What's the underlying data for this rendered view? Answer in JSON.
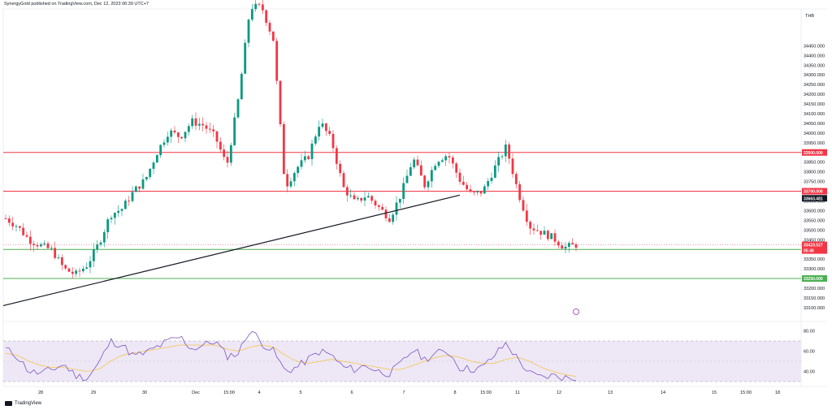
{
  "header": {
    "publisher_line": "SynergyGold published on TradingView.com, Dec 12, 2023 06:39 UTC+7"
  },
  "currency": "THB",
  "footer": {
    "brand": "TradingView"
  },
  "colors": {
    "up": "#089981",
    "down": "#f23645",
    "resistance": "#f23645",
    "support": "#4caf50",
    "trendline": "#131722",
    "rsi": "#7e57c2",
    "rsi_ma": "#f7c64a",
    "rsi_band": "#ede7f6"
  },
  "chart_data": [
    {
      "type": "candlestick",
      "title": "",
      "xlabel": "",
      "ylabel": "THB",
      "ylim": [
        33045,
        34640
      ],
      "y_ticks": [
        33100,
        33150,
        33200,
        33250,
        33300,
        33350,
        33400,
        33450,
        33500,
        33550,
        33600,
        33650,
        33700,
        33750,
        33800,
        33850,
        33900,
        33950,
        34000,
        34050,
        34100,
        34150,
        34200,
        34250,
        34300,
        34350,
        34400,
        34450
      ],
      "y_tick_labels": [
        "33100.000",
        "33150.000",
        "33200.000",
        "33250.000",
        "33300.000",
        "33350.000",
        "33400.000",
        "33450.000",
        "33500.000",
        "33550.000",
        "33600.000",
        "33650.000",
        "33700.000",
        "33750.000",
        "33800.000",
        "33850.000",
        "33900.000",
        "33950.000",
        "34000.000",
        "34050.000",
        "34100.000",
        "34150.000",
        "34200.000",
        "34250.000",
        "34300.000",
        "34350.000",
        "34400.000",
        "34450.000"
      ],
      "x_ticks": [
        "28",
        "29",
        "30",
        "Dec",
        "15:00",
        "4",
        "5",
        "6",
        "7",
        "8",
        "15:00",
        "11",
        "12",
        "13",
        "14",
        "15",
        "15:00",
        "18"
      ],
      "horizontal_lines": [
        {
          "value": 33900,
          "label": "33900.000",
          "kind": "resistance"
        },
        {
          "value": 33700,
          "label": "33700.000",
          "kind": "resistance"
        },
        {
          "value": 33400,
          "label": "33400.000",
          "kind": "support"
        },
        {
          "value": 33250,
          "label": "33250.000",
          "kind": "support"
        }
      ],
      "price_labels": [
        {
          "value": 33663.481,
          "label": "33663.481",
          "kind": "dark"
        },
        {
          "value": 33423.527,
          "label": "33423.527",
          "sub": "05:46",
          "kind": "last"
        }
      ],
      "trendline": {
        "from": {
          "x": "27 Nov",
          "y": 33110
        },
        "to": {
          "x": "8 Dec",
          "y": 33680
        }
      },
      "candle_count": 163,
      "price_path": [
        33560,
        33520,
        33450,
        33420,
        33395,
        33300,
        33270,
        33320,
        33430,
        33580,
        33610,
        33700,
        33760,
        33900,
        34010,
        33980,
        34060,
        34040,
        33980,
        33830,
        34180,
        34650,
        34650,
        34480,
        33720,
        33820,
        33880,
        34060,
        33960,
        33720,
        33640,
        33680,
        33620,
        33560,
        33690,
        33870,
        33730,
        33860,
        33890,
        33760,
        33680,
        33700,
        33820,
        33930,
        33700,
        33520,
        33490,
        33460,
        33410,
        33423.527
      ],
      "last_price": 33423.527
    },
    {
      "type": "line",
      "title": "",
      "series": [
        {
          "name": "",
          "role": "rsi",
          "values": [
            62,
            55,
            40,
            38,
            42,
            47,
            36,
            33,
            48,
            70,
            66,
            55,
            58,
            64,
            70,
            74,
            62,
            66,
            70,
            55,
            58,
            82,
            68,
            60,
            40,
            44,
            52,
            60,
            56,
            44,
            42,
            46,
            40,
            38,
            48,
            62,
            52,
            58,
            60,
            44,
            42,
            44,
            56,
            68,
            52,
            38,
            34,
            36,
            34,
            33
          ]
        },
        {
          "name": "",
          "role": "rsi_ma",
          "values": [
            58,
            56,
            50,
            46,
            44,
            44,
            42,
            40,
            42,
            50,
            56,
            58,
            60,
            62,
            64,
            66,
            66,
            66,
            66,
            62,
            60,
            64,
            66,
            64,
            56,
            50,
            48,
            50,
            52,
            50,
            48,
            46,
            44,
            42,
            42,
            46,
            50,
            54,
            56,
            54,
            50,
            48,
            48,
            52,
            54,
            50,
            44,
            40,
            37,
            35
          ]
        }
      ],
      "ylim": [
        30,
        86
      ],
      "y_ticks": [
        40,
        60,
        80
      ],
      "y_tick_labels": [
        "40.00",
        "60.00",
        "80.00"
      ],
      "bands": [
        30,
        70
      ]
    }
  ]
}
